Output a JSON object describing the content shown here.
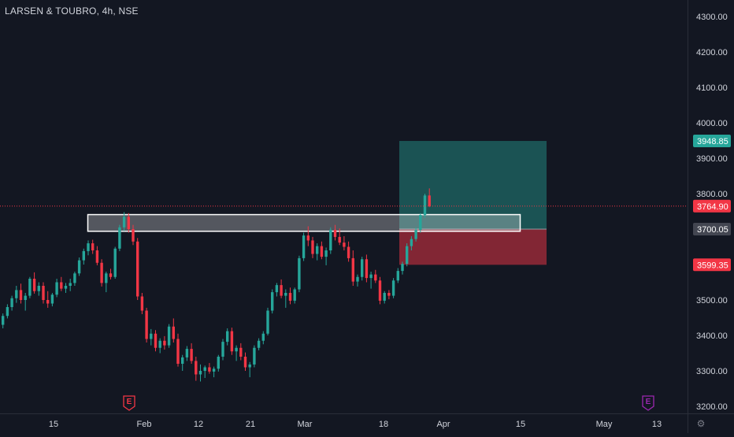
{
  "header": {
    "title": "LARSEN & TOUBRO, 4h, NSE"
  },
  "icons": {
    "settings": "gear-icon",
    "earnings": "E"
  },
  "colors": {
    "background": "#131722",
    "up": "#26a69a",
    "down": "#f23645",
    "axis_text": "#d1d4dc",
    "profit_zone": "#26a69a",
    "loss_zone": "#f23645",
    "earnings_marker": "#f23645",
    "earnings_future": "#9c27b0"
  },
  "chart_data": {
    "type": "candlestick",
    "title": "LARSEN & TOUBRO, 4h, NSE",
    "ylim": [
      3180,
      4340
    ],
    "price_axis": {
      "ticks": [
        "4300.00",
        "4200.00",
        "4100.00",
        "4000.00",
        "3900.00",
        "3800.00",
        "3700.00",
        "3600.00",
        "3500.00",
        "3400.00",
        "3300.00",
        "3200.00"
      ],
      "tick_values": [
        4300,
        4200,
        4100,
        4000,
        3900,
        3800,
        3700,
        3600,
        3500,
        3400,
        3300,
        3200
      ]
    },
    "time_axis": {
      "labels": [
        "15",
        "Feb",
        "12",
        "21",
        "Mar",
        "18",
        "Apr",
        "15",
        "May",
        "13"
      ]
    },
    "price_labels": [
      {
        "value": 3948.85,
        "text": "3948.85",
        "color": "#26a69a"
      },
      {
        "value": 3764.9,
        "text": "3764.90",
        "color": "#f23645"
      },
      {
        "value": 3700.05,
        "text": "3700.05",
        "color": "#434651"
      },
      {
        "value": 3599.35,
        "text": "3599.35",
        "color": "#f23645"
      }
    ],
    "last_price": 3764.9,
    "resistance_zone": {
      "top": 3741,
      "bottom": 3694
    },
    "position": {
      "type": "long",
      "entry": 3700.05,
      "target": 3948.85,
      "stop": 3599.35
    },
    "earnings_markers": [
      {
        "label": "E",
        "type": "past"
      },
      {
        "label": "E",
        "type": "future"
      }
    ],
    "candles": [
      [
        3430,
        3462,
        3420,
        3455
      ],
      [
        3455,
        3488,
        3448,
        3480
      ],
      [
        3480,
        3512,
        3470,
        3505
      ],
      [
        3505,
        3540,
        3492,
        3528
      ],
      [
        3528,
        3546,
        3490,
        3500
      ],
      [
        3500,
        3520,
        3470,
        3512
      ],
      [
        3512,
        3565,
        3505,
        3560
      ],
      [
        3560,
        3578,
        3518,
        3525
      ],
      [
        3525,
        3550,
        3512,
        3540
      ],
      [
        3540,
        3550,
        3490,
        3500
      ],
      [
        3500,
        3525,
        3478,
        3490
      ],
      [
        3490,
        3520,
        3482,
        3515
      ],
      [
        3515,
        3560,
        3508,
        3550
      ],
      [
        3550,
        3565,
        3525,
        3532
      ],
      [
        3532,
        3548,
        3520,
        3540
      ],
      [
        3540,
        3560,
        3525,
        3548
      ],
      [
        3548,
        3580,
        3540,
        3575
      ],
      [
        3575,
        3620,
        3568,
        3612
      ],
      [
        3612,
        3645,
        3600,
        3638
      ],
      [
        3638,
        3668,
        3626,
        3660
      ],
      [
        3660,
        3670,
        3630,
        3640
      ],
      [
        3640,
        3652,
        3598,
        3605
      ],
      [
        3605,
        3615,
        3538,
        3548
      ],
      [
        3548,
        3580,
        3522,
        3575
      ],
      [
        3575,
        3588,
        3558,
        3565
      ],
      [
        3565,
        3650,
        3560,
        3645
      ],
      [
        3645,
        3712,
        3638,
        3705
      ],
      [
        3705,
        3748,
        3695,
        3735
      ],
      [
        3735,
        3745,
        3690,
        3700
      ],
      [
        3700,
        3712,
        3655,
        3665
      ],
      [
        3665,
        3675,
        3500,
        3510
      ],
      [
        3510,
        3520,
        3460,
        3470
      ],
      [
        3470,
        3478,
        3380,
        3390
      ],
      [
        3390,
        3418,
        3372,
        3405
      ],
      [
        3405,
        3415,
        3355,
        3365
      ],
      [
        3365,
        3392,
        3350,
        3385
      ],
      [
        3385,
        3398,
        3360,
        3372
      ],
      [
        3372,
        3432,
        3365,
        3425
      ],
      [
        3425,
        3448,
        3380,
        3390
      ],
      [
        3390,
        3405,
        3312,
        3320
      ],
      [
        3320,
        3345,
        3300,
        3338
      ],
      [
        3338,
        3370,
        3328,
        3362
      ],
      [
        3362,
        3378,
        3320,
        3328
      ],
      [
        3328,
        3340,
        3272,
        3290
      ],
      [
        3290,
        3318,
        3270,
        3300
      ],
      [
        3300,
        3315,
        3280,
        3310
      ],
      [
        3310,
        3322,
        3292,
        3298
      ],
      [
        3298,
        3312,
        3282,
        3306
      ],
      [
        3306,
        3345,
        3298,
        3340
      ],
      [
        3340,
        3390,
        3330,
        3382
      ],
      [
        3382,
        3420,
        3372,
        3412
      ],
      [
        3412,
        3422,
        3345,
        3355
      ],
      [
        3355,
        3372,
        3328,
        3365
      ],
      [
        3365,
        3378,
        3330,
        3340
      ],
      [
        3340,
        3352,
        3300,
        3310
      ],
      [
        3310,
        3325,
        3282,
        3318
      ],
      [
        3318,
        3372,
        3310,
        3365
      ],
      [
        3365,
        3392,
        3358,
        3385
      ],
      [
        3385,
        3412,
        3375,
        3405
      ],
      [
        3405,
        3478,
        3400,
        3470
      ],
      [
        3470,
        3530,
        3462,
        3522
      ],
      [
        3522,
        3548,
        3510,
        3542
      ],
      [
        3542,
        3558,
        3505,
        3512
      ],
      [
        3512,
        3530,
        3478,
        3520
      ],
      [
        3520,
        3535,
        3488,
        3498
      ],
      [
        3498,
        3535,
        3490,
        3530
      ],
      [
        3530,
        3625,
        3522,
        3618
      ],
      [
        3618,
        3690,
        3610,
        3682
      ],
      [
        3682,
        3708,
        3652,
        3668
      ],
      [
        3668,
        3678,
        3618,
        3630
      ],
      [
        3630,
        3660,
        3612,
        3652
      ],
      [
        3652,
        3665,
        3615,
        3622
      ],
      [
        3622,
        3648,
        3598,
        3640
      ],
      [
        3640,
        3705,
        3630,
        3698
      ],
      [
        3698,
        3712,
        3668,
        3678
      ],
      [
        3678,
        3702,
        3655,
        3662
      ],
      [
        3662,
        3680,
        3640,
        3650
      ],
      [
        3650,
        3665,
        3608,
        3618
      ],
      [
        3618,
        3640,
        3540,
        3552
      ],
      [
        3552,
        3572,
        3538,
        3565
      ],
      [
        3565,
        3622,
        3555,
        3615
      ],
      [
        3615,
        3628,
        3550,
        3562
      ],
      [
        3562,
        3580,
        3532,
        3572
      ],
      [
        3572,
        3585,
        3548,
        3555
      ],
      [
        3555,
        3565,
        3488,
        3498
      ],
      [
        3498,
        3525,
        3490,
        3520
      ],
      [
        3520,
        3528,
        3502,
        3512
      ],
      [
        3512,
        3562,
        3505,
        3555
      ],
      [
        3555,
        3590,
        3548,
        3582
      ],
      [
        3582,
        3608,
        3572,
        3602
      ],
      [
        3602,
        3660,
        3595,
        3652
      ],
      [
        3652,
        3680,
        3640,
        3672
      ],
      [
        3672,
        3705,
        3665,
        3698
      ],
      [
        3698,
        3745,
        3690,
        3740
      ],
      [
        3740,
        3800,
        3732,
        3795
      ],
      [
        3795,
        3815,
        3762,
        3765
      ]
    ]
  }
}
